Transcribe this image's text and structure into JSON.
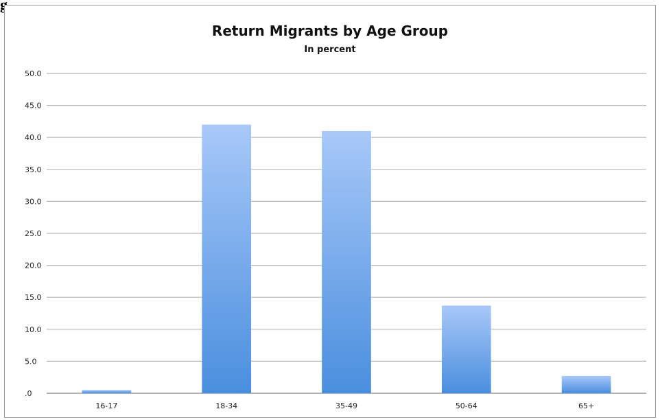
{
  "header": {
    "corner_text": "g"
  },
  "chart_data": {
    "type": "bar",
    "title": "Return Migrants by Age Group",
    "subtitle": "In percent",
    "categories": [
      "16-17",
      "18-34",
      "35-49",
      "50-64",
      "65+"
    ],
    "values": [
      0.5,
      42.0,
      41.0,
      13.7,
      2.7
    ],
    "ylim": [
      0,
      50
    ],
    "yticks": [
      0,
      5,
      10,
      15,
      20,
      25,
      30,
      35,
      40,
      45,
      50
    ],
    "ytick_labels": [
      ".0",
      "5.0",
      "10.0",
      "15.0",
      "20.0",
      "25.0",
      "30.0",
      "35.0",
      "40.0",
      "45.0",
      "50.0"
    ],
    "grid": true,
    "legend": "none",
    "colors": {
      "bar_top": "#a8c8f8",
      "bar_bottom": "#4a8ede",
      "grid": "#b8b8b8",
      "axis": "#888888"
    }
  }
}
